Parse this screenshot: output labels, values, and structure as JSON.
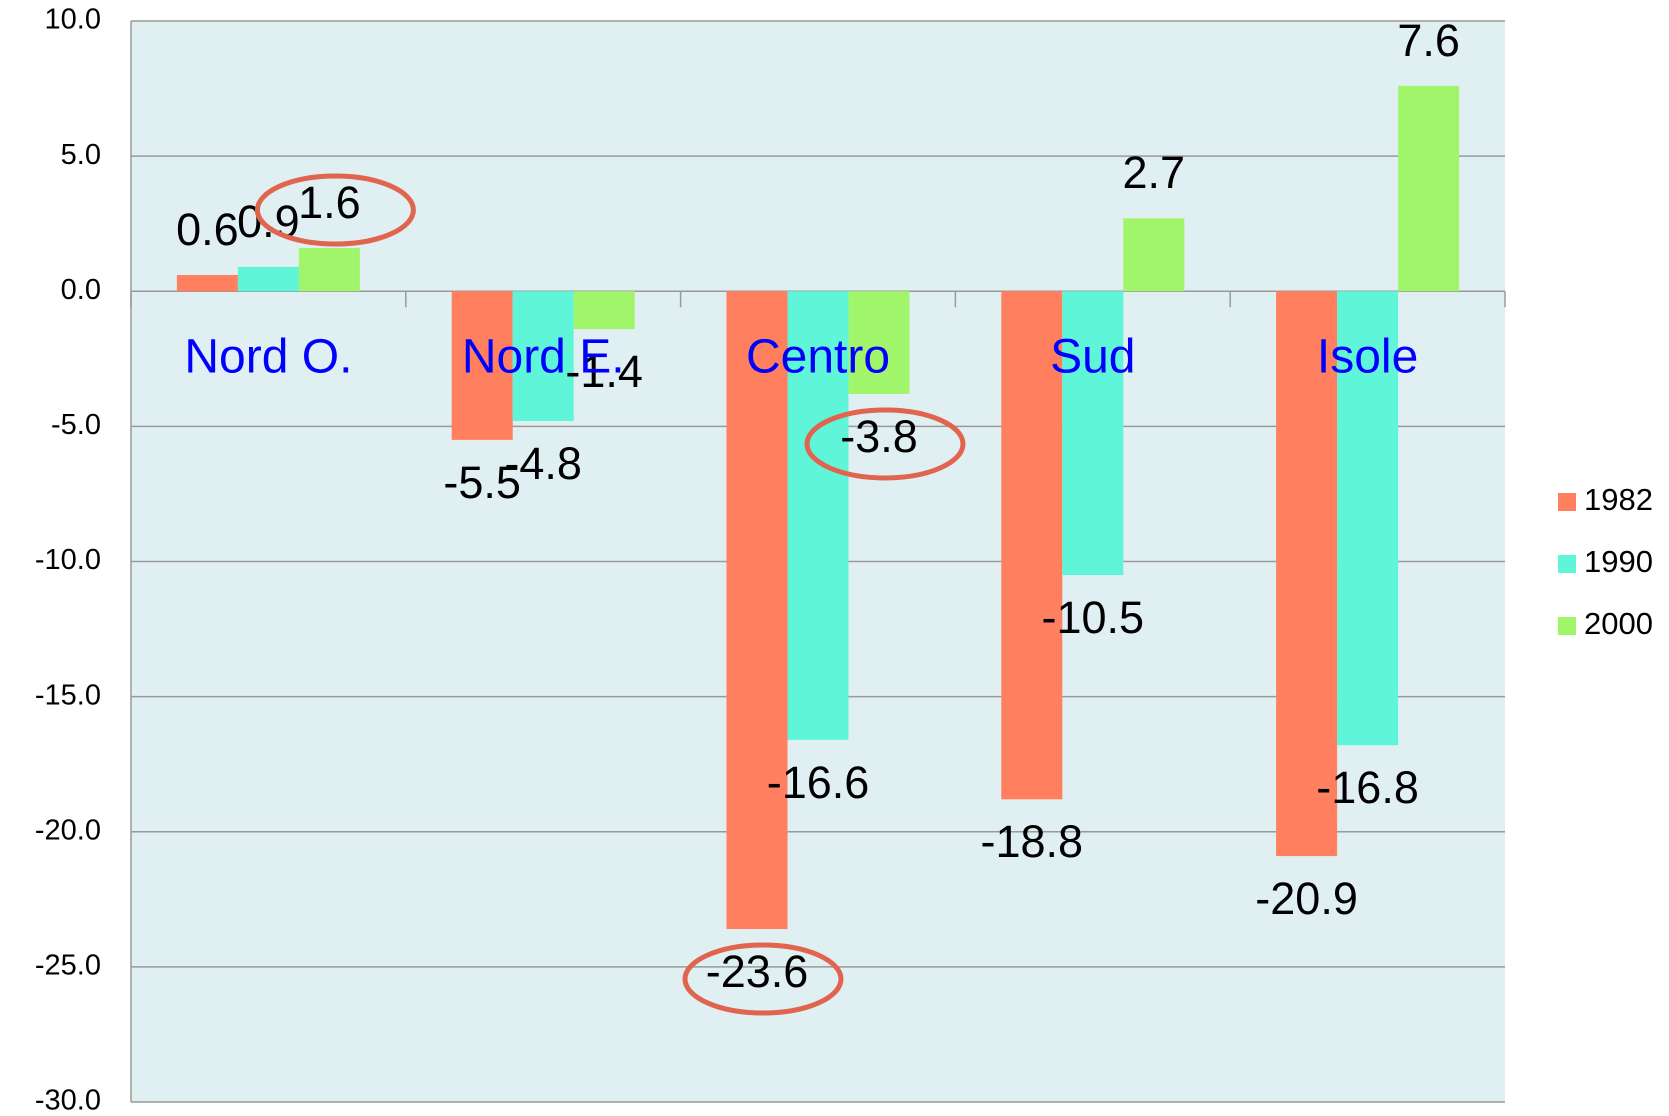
{
  "chart_data": {
    "type": "bar",
    "categories": [
      "Nord O.",
      "Nord E.",
      "Centro",
      "Sud",
      "Isole"
    ],
    "series": [
      {
        "name": "1982",
        "color": "#ff7f5f",
        "values": [
          0.6,
          -5.5,
          -23.6,
          -18.8,
          -20.9
        ]
      },
      {
        "name": "1990",
        "color": "#5ff5d9",
        "values": [
          0.9,
          -4.8,
          -16.6,
          -10.5,
          -16.8
        ]
      },
      {
        "name": "2000",
        "color": "#a0f56a",
        "values": [
          1.6,
          -1.4,
          -3.8,
          2.7,
          7.6
        ]
      }
    ],
    "ylim": [
      -30,
      10
    ],
    "yticks": [
      {
        "value": -30,
        "label": "-30.0"
      },
      {
        "value": -25,
        "label": "-25.0"
      },
      {
        "value": -20,
        "label": "-20.0"
      },
      {
        "value": -15,
        "label": "-15.0"
      },
      {
        "value": -10,
        "label": "-10.0"
      },
      {
        "value": -5,
        "label": "-5.0"
      },
      {
        "value": 0,
        "label": "0.0"
      },
      {
        "value": 5,
        "label": "5.0"
      },
      {
        "value": 10,
        "label": "10.0"
      }
    ],
    "grid": true,
    "legend": "right"
  }
}
